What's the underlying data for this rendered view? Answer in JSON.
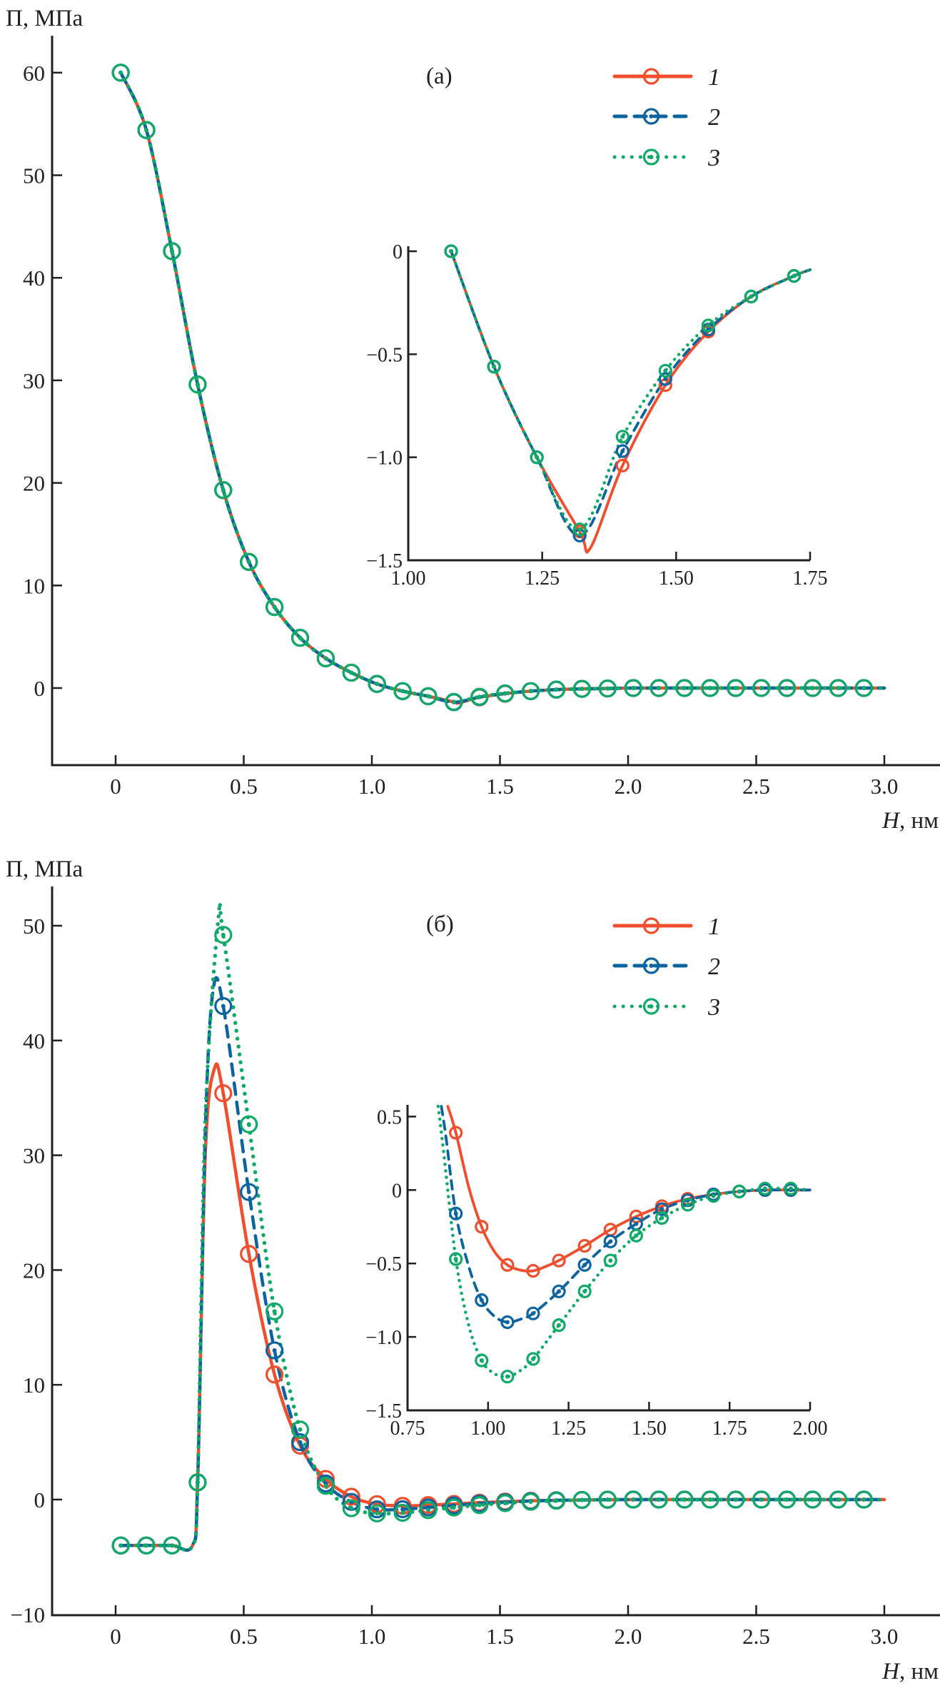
{
  "figure": {
    "panels": [
      "a",
      "b"
    ]
  },
  "colors": {
    "series1": "#f04e2c",
    "series2": "#0b64a0",
    "series3": "#0fa968",
    "axis": "#231f20"
  },
  "chart_data": [
    {
      "id": "panel-a",
      "type": "line",
      "panel_label": "(a)",
      "ylabel": "П, МПа",
      "xlabel_italic": "H",
      "xlabel_unit": ", нм",
      "xlim": [
        -0.2,
        3.15
      ],
      "ylim": [
        -5,
        62
      ],
      "xticks": [
        0,
        0.5,
        1.0,
        1.5,
        2.0,
        2.5,
        3.0
      ],
      "xtick_labels": [
        "0",
        "0.5",
        "1.0",
        "1.5",
        "2.0",
        "2.5",
        "3.0"
      ],
      "yticks": [
        0,
        10,
        20,
        30,
        40,
        50,
        60
      ],
      "ytick_labels": [
        "0",
        "10",
        "20",
        "30",
        "40",
        "50",
        "60"
      ],
      "grid": false,
      "legend": {
        "position": "top-right",
        "entries": [
          "1",
          "2",
          "3"
        ]
      },
      "series": [
        {
          "name": "1",
          "style": "solid",
          "x": [
            0.02,
            0.12,
            0.22,
            0.32,
            0.42,
            0.52,
            0.62,
            0.72,
            0.82,
            0.92,
            1.02,
            1.12,
            1.22,
            1.32,
            1.34,
            1.42,
            1.52,
            1.62,
            1.72,
            1.82,
            1.92,
            2.02,
            2.12,
            2.22,
            2.32,
            2.42,
            2.52,
            2.62,
            2.72,
            2.82,
            2.92,
            3.0
          ],
          "y": [
            60,
            54.4,
            42.6,
            29.6,
            19.3,
            12.3,
            7.9,
            4.9,
            2.9,
            1.5,
            0.4,
            -0.3,
            -0.8,
            -1.36,
            -1.44,
            -0.9,
            -0.55,
            -0.3,
            -0.15,
            -0.08,
            -0.04,
            0,
            0,
            0,
            0,
            0,
            0,
            0,
            0,
            0,
            0,
            0
          ]
        },
        {
          "name": "2",
          "style": "dashed",
          "x": [
            0.02,
            0.12,
            0.22,
            0.32,
            0.42,
            0.52,
            0.62,
            0.72,
            0.82,
            0.92,
            1.02,
            1.12,
            1.22,
            1.32,
            1.42,
            1.52,
            1.62,
            1.72,
            1.82,
            1.92,
            2.02,
            2.12,
            2.22,
            2.32,
            2.42,
            2.52,
            2.62,
            2.72,
            2.82,
            2.92,
            3.0
          ],
          "y": [
            60,
            54.4,
            42.6,
            29.6,
            19.3,
            12.3,
            7.9,
            4.9,
            2.9,
            1.5,
            0.4,
            -0.3,
            -0.8,
            -1.38,
            -0.88,
            -0.53,
            -0.3,
            -0.15,
            -0.08,
            -0.04,
            0,
            0,
            0,
            0,
            0,
            0,
            0,
            0,
            0,
            0,
            0
          ]
        },
        {
          "name": "3",
          "style": "dotted",
          "x": [
            0.02,
            0.12,
            0.22,
            0.32,
            0.42,
            0.52,
            0.62,
            0.72,
            0.82,
            0.92,
            1.02,
            1.12,
            1.22,
            1.32,
            1.42,
            1.52,
            1.62,
            1.72,
            1.82,
            1.92,
            2.02,
            2.12,
            2.22,
            2.32,
            2.42,
            2.52,
            2.62,
            2.72,
            2.82,
            2.92,
            3.0
          ],
          "y": [
            60,
            54.4,
            42.6,
            29.6,
            19.3,
            12.3,
            7.9,
            4.9,
            2.9,
            1.5,
            0.4,
            -0.3,
            -0.8,
            -1.35,
            -0.85,
            -0.52,
            -0.3,
            -0.15,
            -0.08,
            -0.04,
            0,
            0,
            0,
            0,
            0,
            0,
            0,
            0,
            0,
            0,
            0
          ]
        }
      ],
      "inset": {
        "xlim": [
          1.0,
          1.75
        ],
        "ylim": [
          -1.5,
          0
        ],
        "xticks": [
          1.0,
          1.25,
          1.5,
          1.75
        ],
        "xtick_labels": [
          "1.00",
          "1.25",
          "1.50",
          "1.75"
        ],
        "yticks": [
          0,
          -0.5,
          -1.0,
          -1.5
        ],
        "ytick_labels": [
          "0",
          "−0.5",
          "−1.0",
          "−1.5"
        ],
        "series": [
          {
            "name": "1",
            "style": "solid",
            "x": [
              1.08,
              1.16,
              1.24,
              1.32,
              1.34,
              1.4,
              1.48,
              1.56,
              1.64,
              1.72,
              1.75
            ],
            "y": [
              0,
              -0.56,
              -1.0,
              -1.36,
              -1.44,
              -1.04,
              -0.65,
              -0.39,
              -0.22,
              -0.12,
              -0.09
            ],
            "markers_x": [
              1.08,
              1.16,
              1.24,
              1.32,
              1.4,
              1.48,
              1.56,
              1.64,
              1.72
            ]
          },
          {
            "name": "2",
            "style": "dashed",
            "x": [
              1.08,
              1.16,
              1.24,
              1.32,
              1.4,
              1.48,
              1.56,
              1.64,
              1.72,
              1.75
            ],
            "y": [
              0,
              -0.56,
              -1.0,
              -1.38,
              -0.97,
              -0.62,
              -0.38,
              -0.22,
              -0.12,
              -0.09
            ],
            "markers_x": [
              1.08,
              1.16,
              1.24,
              1.32,
              1.4,
              1.48,
              1.56,
              1.64,
              1.72
            ]
          },
          {
            "name": "3",
            "style": "dotted",
            "x": [
              1.08,
              1.16,
              1.24,
              1.32,
              1.4,
              1.48,
              1.56,
              1.64,
              1.72,
              1.75
            ],
            "y": [
              0,
              -0.56,
              -1.0,
              -1.35,
              -0.9,
              -0.58,
              -0.36,
              -0.22,
              -0.12,
              -0.09
            ],
            "markers_x": [
              1.08,
              1.16,
              1.24,
              1.32,
              1.4,
              1.48,
              1.56,
              1.64,
              1.72
            ]
          }
        ]
      }
    },
    {
      "id": "panel-b",
      "type": "line",
      "panel_label": "(б)",
      "ylabel": "П, МПа",
      "xlabel_italic": "H",
      "xlabel_unit": ", нм",
      "xlim": [
        -0.2,
        3.15
      ],
      "ylim": [
        -10,
        53
      ],
      "xticks": [
        0,
        0.5,
        1.0,
        1.5,
        2.0,
        2.5,
        3.0
      ],
      "xtick_labels": [
        "0",
        "0.5",
        "1.0",
        "1.5",
        "2.0",
        "2.5",
        "3.0"
      ],
      "yticks": [
        -10,
        0,
        10,
        20,
        30,
        40,
        50
      ],
      "ytick_labels": [
        "−10",
        "0",
        "10",
        "20",
        "30",
        "40",
        "50"
      ],
      "grid": false,
      "legend": {
        "position": "top-right",
        "entries": [
          "1",
          "2",
          "3"
        ]
      },
      "series": [
        {
          "name": "1",
          "style": "solid",
          "x": [
            0.02,
            0.12,
            0.22,
            0.3,
            0.32,
            0.35,
            0.385,
            0.42,
            0.52,
            0.62,
            0.72,
            0.82,
            0.92,
            1.02,
            1.12,
            1.22,
            1.32,
            1.42,
            1.52,
            1.62,
            1.72,
            1.82,
            1.92,
            2.02,
            2.12,
            2.22,
            2.32,
            2.42,
            2.52,
            2.62,
            2.72,
            2.82,
            2.92,
            3.0
          ],
          "y": [
            -4,
            -4,
            -4,
            -4,
            1.5,
            30,
            37.5,
            35.4,
            21.4,
            10.9,
            4.7,
            1.8,
            0.25,
            -0.4,
            -0.55,
            -0.48,
            -0.38,
            -0.27,
            -0.18,
            -0.11,
            -0.06,
            -0.03,
            -0.01,
            0,
            0,
            0,
            0,
            0,
            0,
            0,
            0,
            0,
            0,
            0
          ],
          "markers_x": [
            0.02,
            0.12,
            0.22,
            0.32,
            0.42,
            0.52,
            0.62,
            0.72,
            0.82,
            0.92,
            1.02,
            1.12,
            1.22,
            1.32,
            1.42,
            1.52,
            1.62,
            1.72,
            1.82,
            1.92,
            2.02,
            2.12,
            2.22,
            2.32,
            2.42,
            2.52,
            2.62,
            2.72,
            2.82,
            2.92
          ]
        },
        {
          "name": "2",
          "style": "dashed",
          "x": [
            0.02,
            0.12,
            0.22,
            0.3,
            0.32,
            0.35,
            0.38,
            0.42,
            0.52,
            0.62,
            0.72,
            0.82,
            0.92,
            1.02,
            1.12,
            1.22,
            1.32,
            1.42,
            1.52,
            1.62,
            1.72,
            1.82,
            1.92,
            2.02,
            2.12,
            2.22,
            2.32,
            2.42,
            2.52,
            2.62,
            2.72,
            2.82,
            2.92,
            3.0
          ],
          "y": [
            -4,
            -4,
            -4,
            -4,
            1.5,
            32,
            44.3,
            43.0,
            26.8,
            13.0,
            5.0,
            1.4,
            -0.2,
            -0.85,
            -0.84,
            -0.69,
            -0.51,
            -0.35,
            -0.23,
            -0.13,
            -0.07,
            -0.03,
            -0.01,
            0,
            0,
            0,
            0,
            0,
            0,
            0,
            0,
            0,
            0,
            0
          ],
          "markers_x": [
            0.02,
            0.12,
            0.22,
            0.32,
            0.42,
            0.52,
            0.62,
            0.72,
            0.82,
            0.92,
            1.02,
            1.12,
            1.22,
            1.32,
            1.42,
            1.52,
            1.62,
            1.72,
            1.82,
            1.92,
            2.02,
            2.12,
            2.22,
            2.32,
            2.42,
            2.52,
            2.62,
            2.72,
            2.82,
            2.92
          ]
        },
        {
          "name": "3",
          "style": "dotted",
          "x": [
            0.02,
            0.12,
            0.22,
            0.3,
            0.32,
            0.35,
            0.4,
            0.42,
            0.52,
            0.62,
            0.72,
            0.82,
            0.92,
            1.02,
            1.12,
            1.22,
            1.32,
            1.42,
            1.52,
            1.62,
            1.72,
            1.82,
            1.92,
            2.02,
            2.12,
            2.22,
            2.32,
            2.42,
            2.52,
            2.62,
            2.72,
            2.82,
            2.92,
            3.0
          ],
          "y": [
            -4,
            -4,
            -4,
            -4,
            1.5,
            33,
            50.4,
            49.2,
            32.7,
            16.4,
            6.1,
            1.2,
            -0.75,
            -1.2,
            -1.15,
            -0.92,
            -0.69,
            -0.48,
            -0.31,
            -0.19,
            -0.1,
            -0.04,
            -0.01,
            0.01,
            0,
            0,
            0,
            0,
            0,
            0,
            0,
            0,
            0,
            0
          ],
          "markers_x": [
            0.02,
            0.12,
            0.22,
            0.32,
            0.42,
            0.52,
            0.62,
            0.72,
            0.82,
            0.92,
            1.02,
            1.12,
            1.22,
            1.32,
            1.42,
            1.52,
            1.62,
            1.72,
            1.82,
            1.92,
            2.02,
            2.12,
            2.22,
            2.32,
            2.42,
            2.52,
            2.62,
            2.72,
            2.82,
            2.92
          ]
        }
      ],
      "inset": {
        "xlim": [
          0.75,
          2.0
        ],
        "ylim": [
          -1.5,
          0.57
        ],
        "xticks": [
          0.75,
          1.0,
          1.25,
          1.5,
          1.75,
          2.0
        ],
        "xtick_labels": [
          "0.75",
          "1.00",
          "1.25",
          "1.50",
          "1.75",
          "2.00"
        ],
        "yticks": [
          0.5,
          0,
          -0.5,
          -1.0,
          -1.5
        ],
        "ytick_labels": [
          "0.5",
          "0",
          "−0.5",
          "−1.0",
          "−1.5"
        ],
        "series": [
          {
            "name": "1",
            "style": "solid",
            "x": [
              0.875,
              0.9,
              0.94,
              0.98,
              1.02,
              1.06,
              1.1,
              1.14,
              1.18,
              1.22,
              1.3,
              1.38,
              1.46,
              1.54,
              1.62,
              1.7,
              1.78,
              1.86,
              1.94,
              2.0
            ],
            "y": [
              0.57,
              0.39,
              0.02,
              -0.25,
              -0.42,
              -0.51,
              -0.545,
              -0.55,
              -0.52,
              -0.48,
              -0.38,
              -0.27,
              -0.18,
              -0.11,
              -0.06,
              -0.03,
              -0.01,
              0,
              0,
              0
            ],
            "markers_x": [
              0.9,
              0.98,
              1.06,
              1.14,
              1.22,
              1.3,
              1.38,
              1.46,
              1.54,
              1.62,
              1.7,
              1.78,
              1.86,
              1.94
            ]
          },
          {
            "name": "2",
            "style": "dashed",
            "x": [
              0.855,
              0.87,
              0.9,
              0.94,
              0.98,
              1.02,
              1.06,
              1.1,
              1.14,
              1.22,
              1.3,
              1.38,
              1.46,
              1.54,
              1.62,
              1.7,
              1.78,
              1.86,
              1.94,
              2.0
            ],
            "y": [
              0.57,
              0.35,
              -0.16,
              -0.52,
              -0.75,
              -0.86,
              -0.9,
              -0.88,
              -0.84,
              -0.69,
              -0.51,
              -0.35,
              -0.23,
              -0.13,
              -0.07,
              -0.03,
              -0.01,
              0,
              0,
              0
            ],
            "markers_x": [
              0.9,
              0.98,
              1.06,
              1.14,
              1.22,
              1.3,
              1.38,
              1.46,
              1.54,
              1.62,
              1.7,
              1.78,
              1.86,
              1.94
            ]
          },
          {
            "name": "3",
            "style": "dotted",
            "x": [
              0.845,
              0.86,
              0.9,
              0.94,
              0.98,
              1.02,
              1.06,
              1.1,
              1.14,
              1.22,
              1.3,
              1.38,
              1.46,
              1.54,
              1.62,
              1.7,
              1.78,
              1.86,
              1.94,
              2.0
            ],
            "y": [
              0.57,
              0.3,
              -0.47,
              -0.92,
              -1.16,
              -1.25,
              -1.27,
              -1.23,
              -1.15,
              -0.92,
              -0.69,
              -0.48,
              -0.31,
              -0.19,
              -0.1,
              -0.04,
              -0.01,
              0.01,
              0.01,
              0
            ],
            "markers_x": [
              0.9,
              0.98,
              1.06,
              1.14,
              1.22,
              1.3,
              1.38,
              1.46,
              1.54,
              1.62,
              1.7,
              1.78,
              1.86,
              1.94
            ]
          }
        ]
      }
    }
  ]
}
